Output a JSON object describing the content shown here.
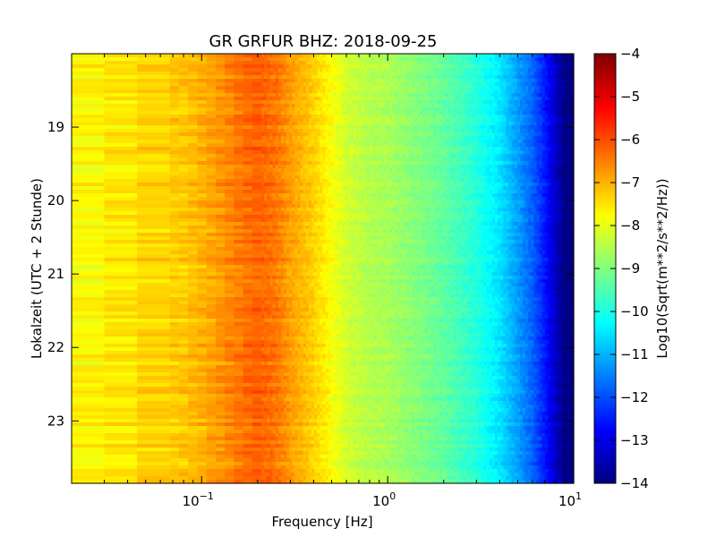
{
  "chart_data": {
    "type": "heatmap",
    "title": "GR GRFUR BHZ: 2018-09-25",
    "xlabel": "Frequency [Hz]",
    "ylabel": "Lokalzeit (UTC + 2 Stunde)",
    "colorbar_label": "Log10(Sqrt(m**2/s**2/Hz))",
    "x_scale": "log",
    "xlim": [
      0.02,
      10
    ],
    "x_ticks": [
      {
        "value": 0.1,
        "base": "10",
        "exp": "−1"
      },
      {
        "value": 1,
        "base": "10",
        "exp": "0"
      },
      {
        "value": 10,
        "base": "10",
        "exp": "1"
      }
    ],
    "ylim": [
      18.0,
      23.85
    ],
    "y_ticks": [
      19,
      20,
      21,
      22,
      23
    ],
    "y_tick_labels": [
      "19",
      "20",
      "21",
      "22",
      "23"
    ],
    "y_inverted": true,
    "clim": [
      -14,
      -4
    ],
    "colorbar_ticks": [
      -4,
      -5,
      -6,
      -7,
      -8,
      -9,
      -10,
      -11,
      -12,
      -13,
      -14
    ],
    "colorbar_tick_labels": [
      "−4",
      "−5",
      "−6",
      "−7",
      "−8",
      "−9",
      "−10",
      "−11",
      "−12",
      "−13",
      "−14"
    ],
    "colormap": "jet",
    "profile": {
      "frequency_hz": [
        0.02,
        0.03,
        0.04,
        0.06,
        0.08,
        0.1,
        0.12,
        0.15,
        0.18,
        0.2,
        0.25,
        0.3,
        0.4,
        0.5,
        0.6,
        0.8,
        1.0,
        1.5,
        2.0,
        3.0,
        4.0,
        5.0,
        6.0,
        7.0,
        8.0,
        9.0,
        10.0
      ],
      "value": [
        -7.7,
        -7.7,
        -7.5,
        -7.3,
        -7.2,
        -7.0,
        -6.8,
        -6.5,
        -6.3,
        -6.2,
        -6.4,
        -6.8,
        -7.3,
        -7.8,
        -8.2,
        -8.5,
        -8.6,
        -9.0,
        -9.3,
        -9.9,
        -10.5,
        -11.2,
        -11.8,
        -12.5,
        -13.3,
        -14.0,
        -14.0
      ]
    },
    "time_rows": 120
  }
}
